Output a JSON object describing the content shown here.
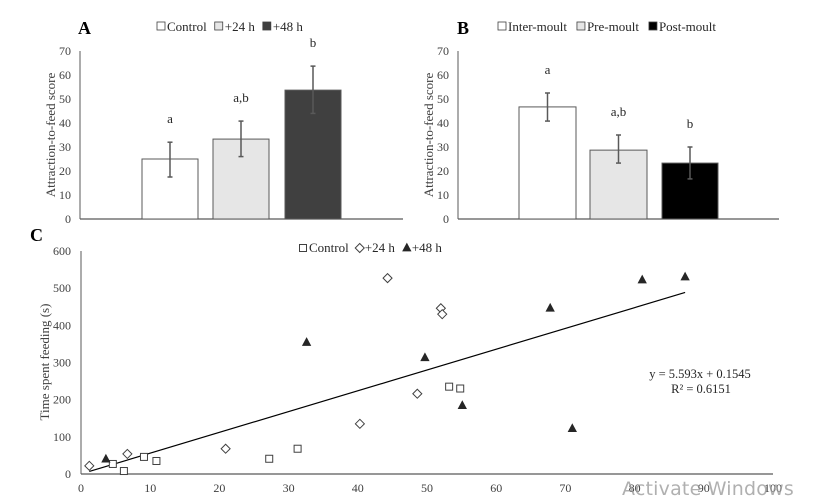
{
  "chart_data": [
    {
      "panel": "A",
      "type": "bar",
      "title": "A",
      "categories": [
        "Control",
        "+24 h",
        "+48 h"
      ],
      "values": [
        25,
        33.3,
        53.7
      ],
      "error_low": [
        17.5,
        26,
        44
      ],
      "error_high": [
        32,
        40.8,
        63.7
      ],
      "significance": [
        "a",
        "a,b",
        "b"
      ],
      "colors": [
        "#ffffff",
        "#e6e6e6",
        "#404040"
      ],
      "legend": [
        "Control",
        "+24 h",
        "+48 h"
      ],
      "legend_position": "top-center",
      "xlabel": "",
      "ylabel": "Attraction-to-feed score",
      "ylim": [
        0,
        70
      ],
      "yticks": [
        "0",
        "10",
        "20",
        "30",
        "40",
        "50",
        "60",
        "70"
      ]
    },
    {
      "panel": "B",
      "type": "bar",
      "title": "B",
      "categories": [
        "Inter-moult",
        "Pre-moult",
        "Post-moult"
      ],
      "values": [
        46.7,
        28.7,
        23.3
      ],
      "error_low": [
        40.8,
        23.3,
        16.7
      ],
      "error_high": [
        52.5,
        35,
        30
      ],
      "significance": [
        "a",
        "a,b",
        "b"
      ],
      "colors": [
        "#ffffff",
        "#e6e6e6",
        "#000000"
      ],
      "legend": [
        "Inter-moult",
        "Pre-moult",
        "Post-moult"
      ],
      "legend_position": "top-center",
      "xlabel": "",
      "ylabel": "Attraction-to-feed score",
      "ylim": [
        0,
        70
      ],
      "yticks": [
        "0",
        "10",
        "20",
        "30",
        "40",
        "50",
        "60",
        "70"
      ]
    },
    {
      "panel": "C",
      "type": "scatter",
      "title": "C",
      "series": [
        {
          "name": "Control",
          "marker": "square",
          "points": [
            [
              4.6,
              27
            ],
            [
              6.2,
              8
            ],
            [
              9.1,
              46
            ],
            [
              10.9,
              35
            ],
            [
              27.2,
              41
            ],
            [
              31.3,
              68
            ],
            [
              53.2,
              235
            ],
            [
              54.8,
              230
            ]
          ]
        },
        {
          "name": "+24 h",
          "marker": "diamond",
          "points": [
            [
              1.2,
              22
            ],
            [
              6.7,
              54
            ],
            [
              20.9,
              68
            ],
            [
              40.3,
              135
            ],
            [
              44.3,
              527
            ],
            [
              48.6,
              216
            ],
            [
              52.0,
              446
            ],
            [
              52.2,
              430
            ]
          ]
        },
        {
          "name": "+48 h",
          "marker": "triangle",
          "points": [
            [
              3.6,
              40
            ],
            [
              32.6,
              354
            ],
            [
              49.7,
              313
            ],
            [
              55.1,
              184
            ],
            [
              67.8,
              446
            ],
            [
              71.0,
              122
            ],
            [
              81.1,
              522
            ],
            [
              87.3,
              530
            ]
          ]
        }
      ],
      "trendline": {
        "slope": 5.593,
        "intercept": 0.1545,
        "x_range": [
          1.2,
          87.3
        ]
      },
      "equation": "y = 5.593x + 0.1545",
      "r_squared": "R² = 0.6151",
      "legend": [
        "Control",
        "+24 h",
        "+48 h"
      ],
      "legend_position": "top-center",
      "xlabel": "",
      "ylabel": "Time spent feeding (s)",
      "xlim": [
        0,
        100
      ],
      "ylim": [
        0,
        600
      ],
      "xticks": [
        "0",
        "10",
        "20",
        "30",
        "40",
        "50",
        "60",
        "70",
        "80",
        "90",
        "100"
      ],
      "yticks": [
        "0",
        "100",
        "200",
        "300",
        "400",
        "500",
        "600"
      ]
    }
  ],
  "watermark": "Activate Windows"
}
